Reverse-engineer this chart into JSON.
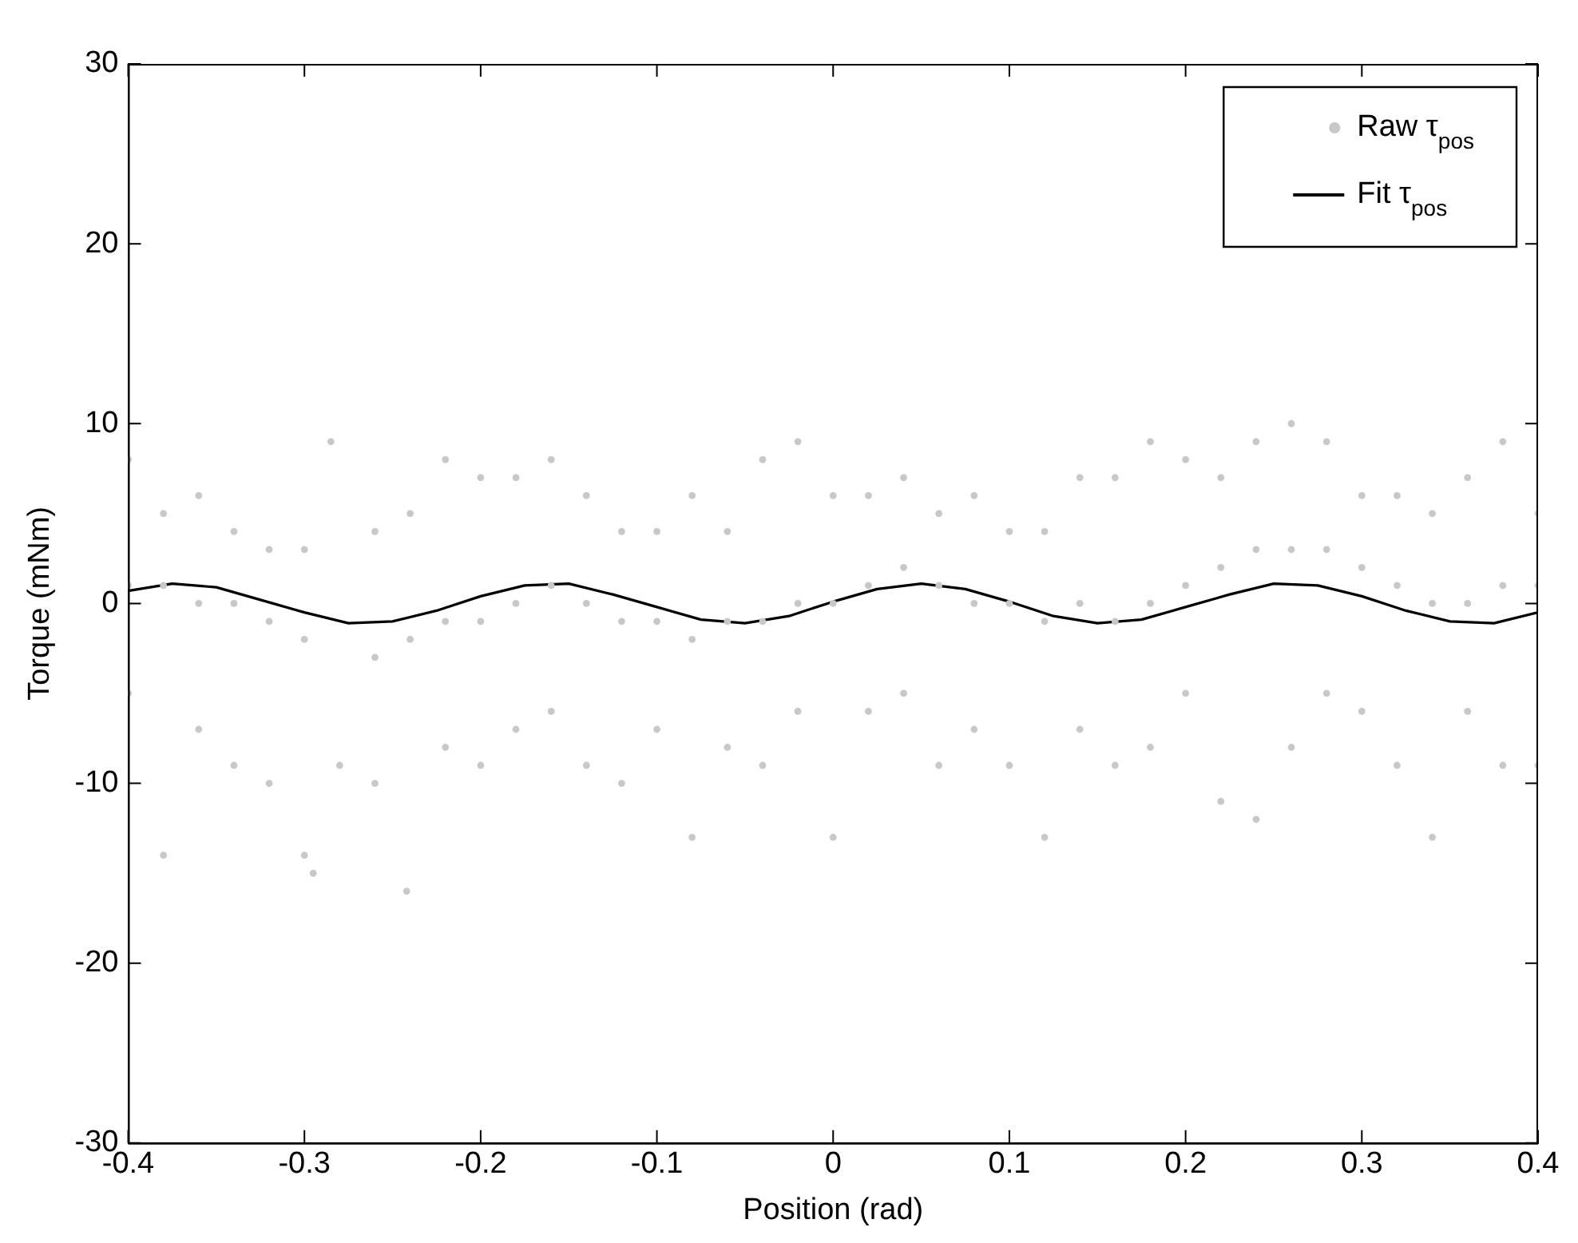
{
  "chart_data": {
    "type": "scatter",
    "xlabel": "Position (rad)",
    "ylabel": "Torque (mNm)",
    "xlim": [
      -0.4,
      0.4
    ],
    "ylim": [
      -30,
      30
    ],
    "xticks": [
      -0.4,
      -0.3,
      -0.2,
      -0.1,
      0,
      0.1,
      0.2,
      0.3,
      0.4
    ],
    "yticks": [
      -30,
      -20,
      -10,
      0,
      10,
      20,
      30
    ],
    "grid": false,
    "legend": "top right",
    "series": [
      {
        "name": "Raw τ$_{pos}$",
        "type": "scatter",
        "color": "#c8c8c8",
        "x": [
          -0.4,
          -0.4,
          -0.4,
          -0.38,
          -0.38,
          -0.38,
          -0.36,
          -0.36,
          -0.36,
          -0.34,
          -0.34,
          -0.34,
          -0.32,
          -0.32,
          -0.32,
          -0.3,
          -0.3,
          -0.3,
          -0.285,
          -0.295,
          -0.28,
          -0.26,
          -0.26,
          -0.26,
          -0.242,
          -0.24,
          -0.24,
          -0.22,
          -0.22,
          -0.22,
          -0.2,
          -0.2,
          -0.2,
          -0.18,
          -0.18,
          -0.18,
          -0.16,
          -0.16,
          -0.16,
          -0.14,
          -0.14,
          -0.14,
          -0.12,
          -0.12,
          -0.12,
          -0.1,
          -0.1,
          -0.1,
          -0.08,
          -0.08,
          -0.08,
          -0.06,
          -0.06,
          -0.06,
          -0.04,
          -0.04,
          -0.04,
          -0.02,
          -0.02,
          -0.02,
          0,
          0,
          0,
          0.02,
          0.02,
          0.02,
          0.04,
          0.04,
          0.04,
          0.06,
          0.06,
          0.06,
          0.08,
          0.08,
          0.08,
          0.1,
          0.1,
          0.1,
          0.12,
          0.12,
          0.12,
          0.14,
          0.14,
          0.14,
          0.16,
          0.16,
          0.16,
          0.18,
          0.18,
          0.18,
          0.2,
          0.2,
          0.2,
          0.22,
          0.22,
          0.22,
          0.24,
          0.24,
          0.24,
          0.26,
          0.26,
          0.26,
          0.28,
          0.28,
          0.28,
          0.3,
          0.3,
          0.3,
          0.32,
          0.32,
          0.32,
          0.34,
          0.34,
          0.34,
          0.36,
          0.36,
          0.36,
          0.38,
          0.38,
          0.38,
          0.4,
          0.4,
          0.4
        ],
        "values": [
          8,
          1,
          -5,
          5,
          1,
          -14,
          6,
          0,
          -7,
          4,
          0,
          -9,
          3,
          -1,
          -10,
          3,
          -2,
          -14,
          9,
          -15,
          -9,
          4,
          -3,
          -10,
          -16,
          5,
          -2,
          8,
          -1,
          -8,
          7,
          -1,
          -9,
          7,
          0,
          -7,
          8,
          1,
          -6,
          6,
          0,
          -9,
          4,
          -1,
          -10,
          4,
          -1,
          -7,
          6,
          -2,
          -13,
          4,
          -1,
          -8,
          8,
          -1,
          -9,
          9,
          0,
          -6,
          6,
          0,
          -13,
          6,
          1,
          -6,
          7,
          2,
          -5,
          5,
          1,
          -9,
          6,
          0,
          -7,
          4,
          0,
          -9,
          4,
          -1,
          -13,
          7,
          0,
          -7,
          7,
          -1,
          -9,
          9,
          0,
          -8,
          8,
          1,
          -5,
          7,
          2,
          -11,
          9,
          3,
          -12,
          10,
          3,
          -8,
          9,
          3,
          -5,
          6,
          2,
          -6,
          6,
          1,
          -9,
          5,
          0,
          -13,
          7,
          0,
          -6,
          9,
          1,
          -9,
          5,
          1,
          -9
        ]
      },
      {
        "name": "Fit τ$_{pos}$",
        "type": "line",
        "color": "#000000",
        "x": [
          -0.4,
          -0.375,
          -0.35,
          -0.325,
          -0.3,
          -0.275,
          -0.25,
          -0.225,
          -0.2,
          -0.175,
          -0.15,
          -0.125,
          -0.1,
          -0.075,
          -0.05,
          -0.025,
          0,
          0.025,
          0.05,
          0.075,
          0.1,
          0.125,
          0.15,
          0.175,
          0.2,
          0.225,
          0.25,
          0.275,
          0.3,
          0.325,
          0.35,
          0.375,
          0.4
        ],
        "values": [
          0.7,
          1.1,
          0.9,
          0.2,
          -0.5,
          -1.1,
          -1.0,
          -0.4,
          0.4,
          1.0,
          1.1,
          0.5,
          -0.2,
          -0.9,
          -1.1,
          -0.7,
          0.1,
          0.8,
          1.1,
          0.8,
          0.1,
          -0.7,
          -1.1,
          -0.9,
          -0.2,
          0.5,
          1.1,
          1.0,
          0.4,
          -0.4,
          -1.0,
          -1.1,
          -0.5
        ]
      }
    ]
  }
}
